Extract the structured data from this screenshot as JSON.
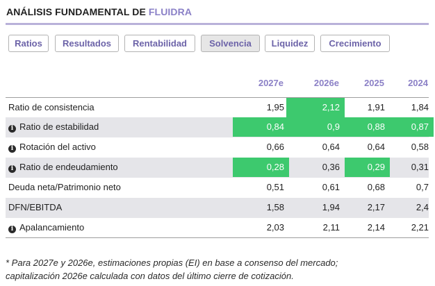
{
  "header": {
    "title_prefix": "ANÁLISIS FUNDAMENTAL DE",
    "title_company": "FLUIDRA"
  },
  "tabs": [
    {
      "label": "Ratios",
      "active": false
    },
    {
      "label": "Resultados",
      "active": false
    },
    {
      "label": "Rentabilidad",
      "active": false
    },
    {
      "label": "Solvencia",
      "active": true
    },
    {
      "label": "Liquidez",
      "active": false
    },
    {
      "label": "Crecimiento",
      "active": false
    }
  ],
  "table": {
    "columns": [
      "2027e",
      "2026e",
      "2025",
      "2024"
    ],
    "rows": [
      {
        "label": "Ratio de consistencia",
        "info_icon": false,
        "values": [
          "1,95",
          "2,12",
          "1,91",
          "1,84"
        ],
        "highlighted": [
          false,
          true,
          false,
          false
        ]
      },
      {
        "label": "Ratio de estabilidad",
        "info_icon": true,
        "values": [
          "0,84",
          "0,9",
          "0,88",
          "0,87"
        ],
        "highlighted": [
          true,
          true,
          true,
          true
        ]
      },
      {
        "label": "Rotación del activo",
        "info_icon": true,
        "values": [
          "0,66",
          "0,64",
          "0,64",
          "0,58"
        ],
        "highlighted": [
          false,
          false,
          false,
          false
        ]
      },
      {
        "label": "Ratio de endeudamiento",
        "info_icon": true,
        "values": [
          "0,28",
          "0,36",
          "0,29",
          "0,31"
        ],
        "highlighted": [
          true,
          false,
          true,
          false
        ]
      },
      {
        "label": "Deuda neta/Patrimonio neto",
        "info_icon": false,
        "values": [
          "0,51",
          "0,61",
          "0,68",
          "0,7"
        ],
        "highlighted": [
          false,
          false,
          false,
          false
        ]
      },
      {
        "label": "DFN/EBITDA",
        "info_icon": false,
        "values": [
          "1,58",
          "1,94",
          "2,17",
          "2,4"
        ],
        "highlighted": [
          false,
          false,
          false,
          false
        ]
      },
      {
        "label": "Apalancamiento",
        "info_icon": true,
        "values": [
          "2,03",
          "2,11",
          "2,14",
          "2,21"
        ],
        "highlighted": [
          false,
          false,
          false,
          false
        ]
      }
    ]
  },
  "footnote": {
    "line1": "* Para 2027e y 2026e, estimaciones propias (EI) en base a consenso del mercado;",
    "line2": "capitalización 2026e calculada con datos del último cierre de cotización."
  },
  "colors": {
    "accent": "#8a80c7",
    "tab_text": "#6c63a8",
    "highlight": "#3dc96e",
    "row_shade": "#e5e5e9"
  },
  "icons": {
    "info": "info-circle-icon"
  }
}
